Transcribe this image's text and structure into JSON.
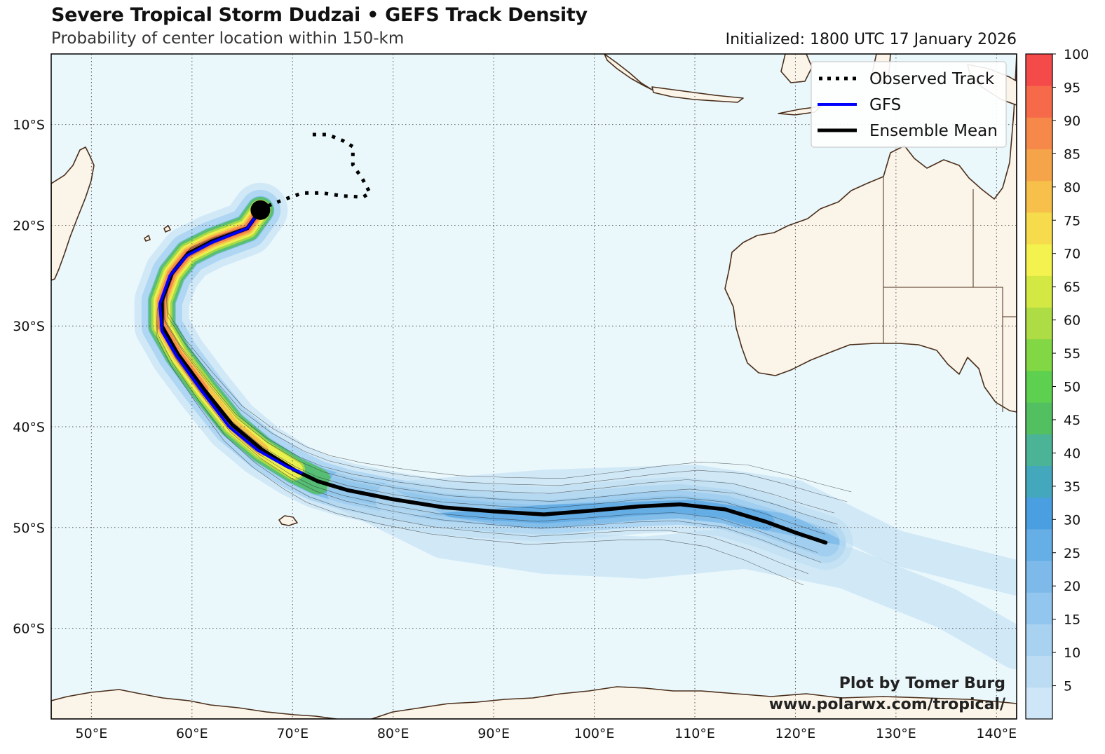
{
  "header": {
    "title": "Severe Tropical Storm Dudzai • GEFS Track Density",
    "subtitle": "Probability of center location within 150-km",
    "initialized": "Initialized: 1800 UTC 17 January 2026"
  },
  "credit": {
    "line1": "Plot by Tomer Burg",
    "line2": "www.polarwx.com/tropical/"
  },
  "legend": {
    "observed": "Observed Track",
    "gfs": "GFS",
    "mean": "Ensemble Mean"
  },
  "colors": {
    "ocean": "#eaf8fc",
    "land": "#fbf4e8",
    "coast": "#4a2e1a",
    "gfs": "#0000ff",
    "mean": "#000000"
  },
  "map_extent": {
    "lon": [
      46,
      142
    ],
    "lat": [
      -69,
      -3
    ]
  },
  "axes": {
    "lon_ticks": [
      {
        "v": 50,
        "label": "50°E"
      },
      {
        "v": 60,
        "label": "60°E"
      },
      {
        "v": 70,
        "label": "70°E"
      },
      {
        "v": 80,
        "label": "80°E"
      },
      {
        "v": 90,
        "label": "90°E"
      },
      {
        "v": 100,
        "label": "100°E"
      },
      {
        "v": 110,
        "label": "110°E"
      },
      {
        "v": 120,
        "label": "120°E"
      },
      {
        "v": 130,
        "label": "130°E"
      },
      {
        "v": 140,
        "label": "140°E"
      }
    ],
    "lat_ticks": [
      {
        "v": -10,
        "label": "10°S"
      },
      {
        "v": -20,
        "label": "20°S"
      },
      {
        "v": -30,
        "label": "30°S"
      },
      {
        "v": -40,
        "label": "40°S"
      },
      {
        "v": -50,
        "label": "50°S"
      },
      {
        "v": -60,
        "label": "60°S"
      }
    ]
  },
  "chart_data": {
    "type": "track-density-map",
    "storm": "Dudzai",
    "colorbar": {
      "min": 0,
      "max": 100,
      "step": 5,
      "labels": [
        "5",
        "10",
        "15",
        "20",
        "25",
        "30",
        "35",
        "40",
        "45",
        "50",
        "55",
        "60",
        "65",
        "70",
        "75",
        "80",
        "85",
        "90",
        "95",
        "100"
      ],
      "colors": [
        "#cfe6f8",
        "#bcdcf3",
        "#a8d2f0",
        "#93c6ee",
        "#7dbaea",
        "#65aee6",
        "#4a9fe0",
        "#44a8bc",
        "#4cb496",
        "#52c060",
        "#5ed050",
        "#82d844",
        "#aedc44",
        "#d4e844",
        "#f4f24e",
        "#f6dc4c",
        "#f6c04a",
        "#f6a44a",
        "#f6884a",
        "#f66a4a",
        "#f44a4a"
      ]
    },
    "observed_track": [
      [
        72,
        -11
      ],
      [
        73.5,
        -11
      ],
      [
        75,
        -11.6
      ],
      [
        76,
        -12.2
      ],
      [
        76,
        -14
      ],
      [
        77,
        -15.5
      ],
      [
        77.7,
        -16.8
      ],
      [
        77,
        -17.2
      ],
      [
        75,
        -17.1
      ],
      [
        73,
        -16.8
      ],
      [
        71,
        -16.8
      ],
      [
        69,
        -17.5
      ],
      [
        67,
        -18.3
      ]
    ],
    "gfs_track": [
      [
        66.8,
        -18.5
      ],
      [
        65.5,
        -20.3
      ],
      [
        62,
        -21.7
      ],
      [
        59.5,
        -23
      ],
      [
        57.8,
        -25
      ],
      [
        56.8,
        -27.8
      ],
      [
        57,
        -30.5
      ],
      [
        58.5,
        -33
      ],
      [
        61,
        -36.5
      ],
      [
        63.7,
        -40
      ],
      [
        66.5,
        -42.3
      ],
      [
        69.5,
        -44
      ],
      [
        71,
        -44.6
      ]
    ],
    "ensemble_mean_track": [
      [
        66.8,
        -18.5
      ],
      [
        65.5,
        -20.3
      ],
      [
        62,
        -21.6
      ],
      [
        59.6,
        -22.8
      ],
      [
        58,
        -24.8
      ],
      [
        57,
        -27.5
      ],
      [
        57,
        -30
      ],
      [
        58.6,
        -32.8
      ],
      [
        61.2,
        -36.3
      ],
      [
        64,
        -39.8
      ],
      [
        67,
        -42.3
      ],
      [
        70.2,
        -44.3
      ],
      [
        72.5,
        -45.4
      ],
      [
        75.5,
        -46.3
      ],
      [
        80,
        -47.2
      ],
      [
        85,
        -48
      ],
      [
        90,
        -48.4
      ],
      [
        95,
        -48.7
      ],
      [
        100,
        -48.3
      ],
      [
        104.5,
        -47.9
      ],
      [
        108.5,
        -47.7
      ],
      [
        113,
        -48.2
      ],
      [
        117,
        -49.4
      ],
      [
        120,
        -50.5
      ],
      [
        123,
        -51.5
      ]
    ],
    "storm_position": [
      66.8,
      -18.5
    ]
  }
}
